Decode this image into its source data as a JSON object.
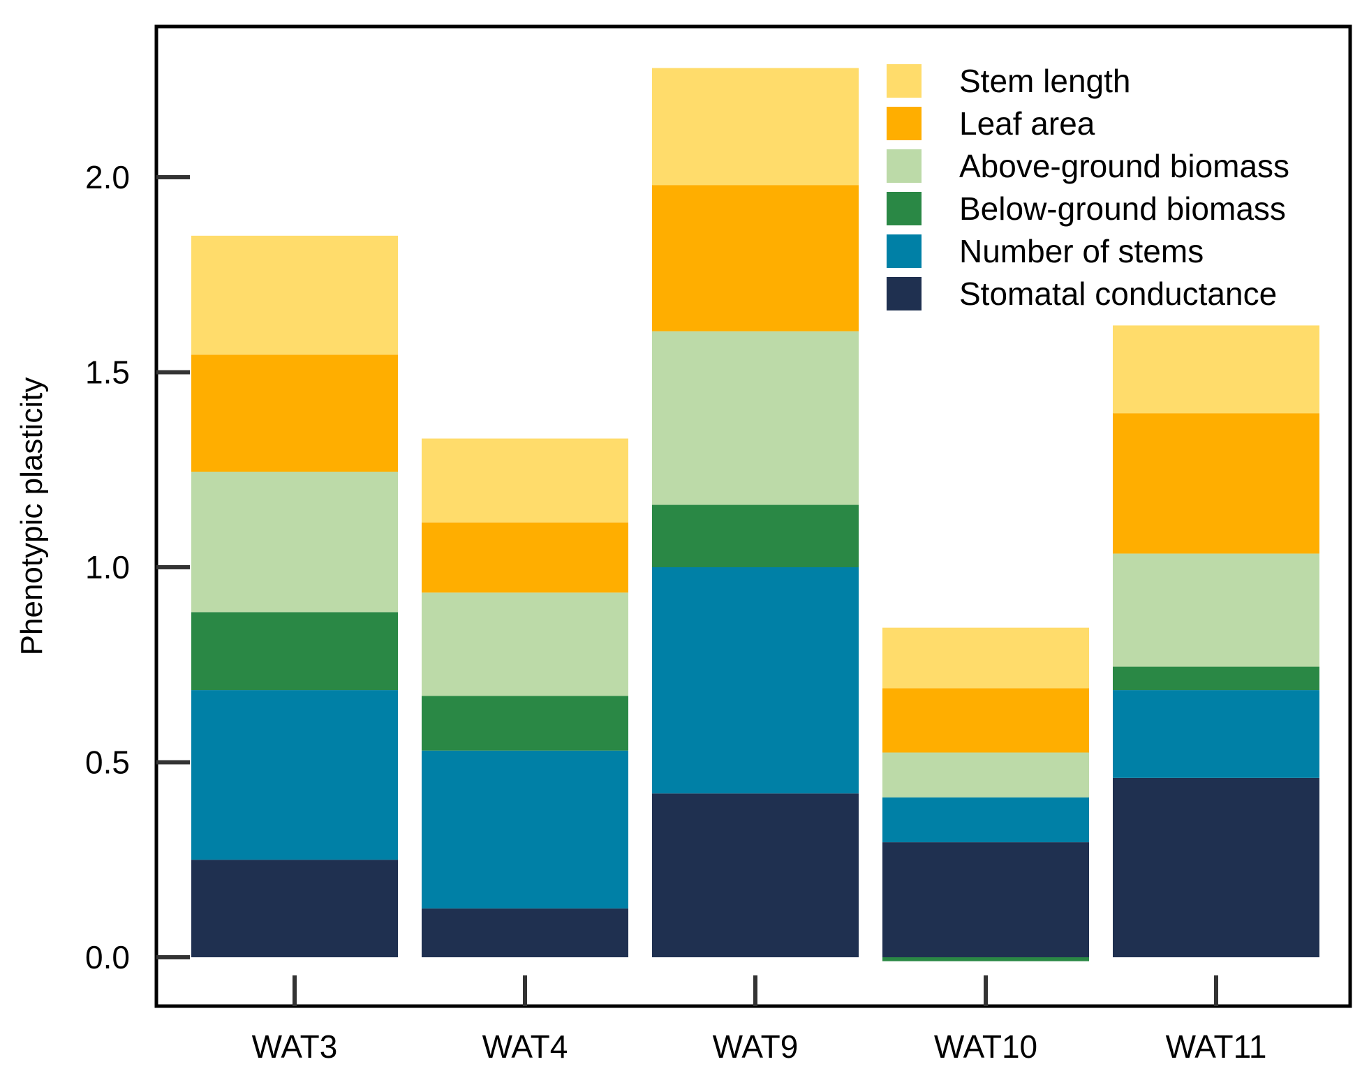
{
  "chart_data": {
    "type": "bar",
    "stacked": true,
    "title": "",
    "xlabel": "",
    "ylabel": "Phenotypic plasticity",
    "categories": [
      "WAT3",
      "WAT4",
      "WAT9",
      "WAT10",
      "WAT11"
    ],
    "ylim": [
      -0.1,
      2.4
    ],
    "yticks": [
      0.0,
      0.5,
      1.0,
      1.5,
      2.0
    ],
    "ytick_labels": [
      "0.0",
      "0.5",
      "1.0",
      "1.5",
      "2.0"
    ],
    "legend_position": "top-right",
    "series": [
      {
        "name": "Stomatal conductance",
        "color": "#1f3050",
        "values": [
          0.25,
          0.125,
          0.42,
          0.295,
          0.46
        ]
      },
      {
        "name": "Number of stems",
        "color": "#0080a6",
        "values": [
          0.435,
          0.405,
          0.58,
          0.115,
          0.225
        ]
      },
      {
        "name": "Below-ground biomass",
        "color": "#2a8845",
        "values": [
          0.2,
          0.14,
          0.16,
          -0.01,
          0.06
        ]
      },
      {
        "name": "Above-ground biomass",
        "color": "#bcdaa8",
        "values": [
          0.36,
          0.265,
          0.445,
          0.115,
          0.29
        ]
      },
      {
        "name": "Leaf area",
        "color": "#ffae00",
        "values": [
          0.3,
          0.18,
          0.375,
          0.165,
          0.36
        ]
      },
      {
        "name": "Stem length",
        "color": "#ffdc6b",
        "values": [
          0.305,
          0.215,
          0.3,
          0.155,
          0.225
        ]
      }
    ],
    "legend_order": [
      "Stem length",
      "Leaf area",
      "Above-ground biomass",
      "Below-ground biomass",
      "Number of stems",
      "Stomatal conductance"
    ]
  }
}
